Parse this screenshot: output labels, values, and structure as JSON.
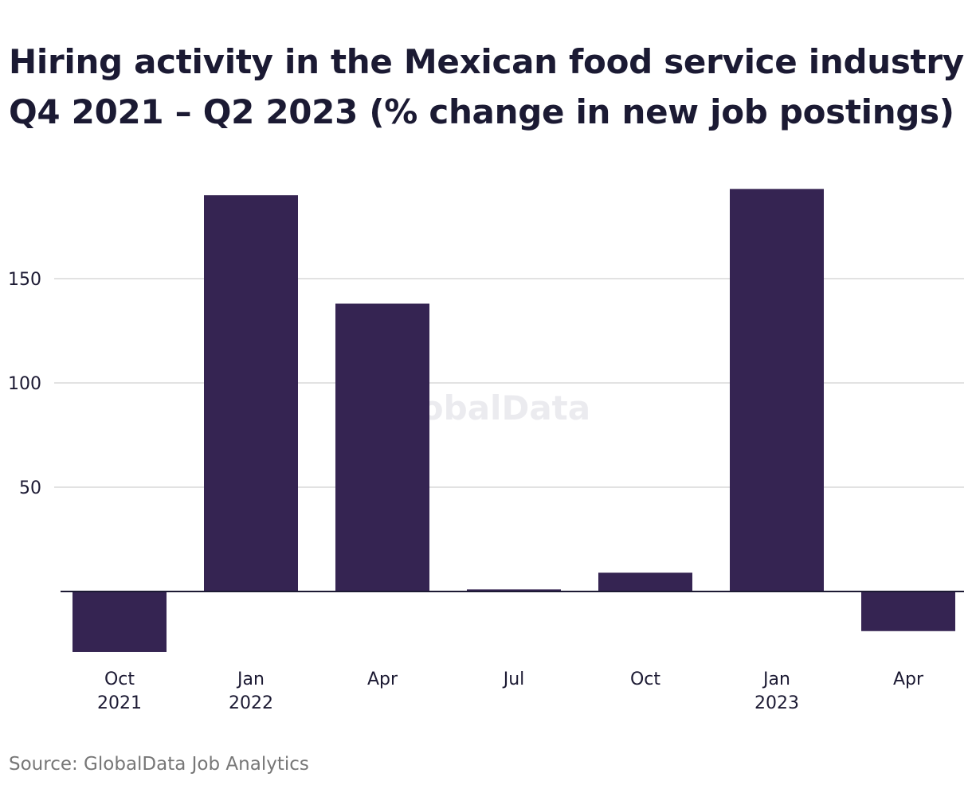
{
  "title_lines": [
    "Hiring activity in the Mexican food service industry",
    "Q4 2021 – Q2 2023 (% change in new job postings)"
  ],
  "source": "Source: GlobalData Job Analytics",
  "watermark": "GlobalData",
  "colors": {
    "bar": "#352452",
    "grid": "#d9d9d9",
    "axis": "#1c1a33",
    "watermark": "#ebebef"
  },
  "chart_data": {
    "type": "bar",
    "title": "Hiring activity in the Mexican food service industry Q4 2021 – Q2 2023 (% change in new job postings)",
    "categories": [
      [
        "Oct",
        "2021"
      ],
      [
        "Jan",
        "2022"
      ],
      [
        "Apr",
        ""
      ],
      [
        "Jul",
        ""
      ],
      [
        "Oct",
        ""
      ],
      [
        "Jan",
        "2023"
      ],
      [
        "Apr",
        ""
      ]
    ],
    "values": [
      -29,
      190,
      138,
      1,
      9,
      193,
      -19
    ],
    "yticks": [
      50,
      100,
      150
    ],
    "ylim": [
      -33,
      200
    ],
    "grid": true,
    "xlabel": "",
    "ylabel": ""
  }
}
